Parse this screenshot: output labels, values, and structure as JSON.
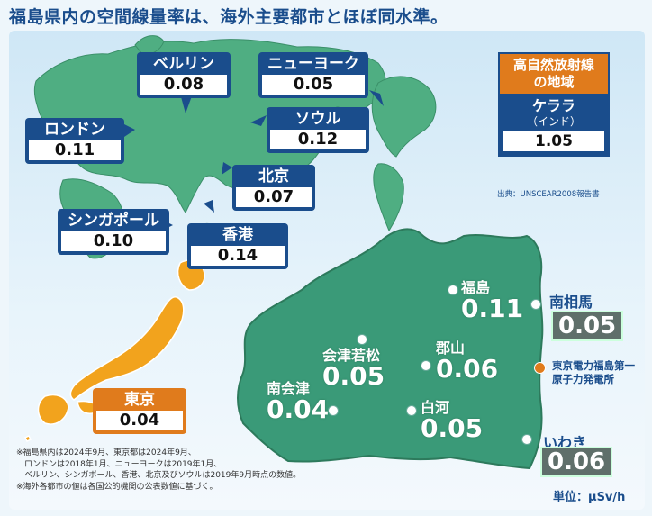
{
  "title": "福島県内の空間線量率は、海外主要都市とほぼ同水準。",
  "world_cities": [
    {
      "name": "ベルリン",
      "value": "0.08"
    },
    {
      "name": "ニューヨーク",
      "value": "0.05"
    },
    {
      "name": "ロンドン",
      "value": "0.11"
    },
    {
      "name": "ソウル",
      "value": "0.12"
    },
    {
      "name": "北京",
      "value": "0.07"
    },
    {
      "name": "シンガポール",
      "value": "0.10"
    },
    {
      "name": "香港",
      "value": "0.14"
    }
  ],
  "tokyo": {
    "name": "東京",
    "value": "0.04"
  },
  "high_radiation": {
    "heading_line1": "高自然放射線",
    "heading_line2": "の地域",
    "name": "ケララ",
    "country": "（インド）",
    "value": "1.05",
    "source": "出典：UNSCEAR2008報告書"
  },
  "fukushima_cities": [
    {
      "name": "福島",
      "value": "0.11"
    },
    {
      "name": "会津若松",
      "value": "0.05"
    },
    {
      "name": "郡山",
      "value": "0.06"
    },
    {
      "name": "南会津",
      "value": "0.04"
    },
    {
      "name": "白河",
      "value": "0.05"
    }
  ],
  "coastal_cities": [
    {
      "name": "南相馬",
      "value": "0.05"
    },
    {
      "name": "いわき",
      "value": "0.06"
    }
  ],
  "power_plant": {
    "line1": "東京電力福島第一",
    "line2": "原子力発電所"
  },
  "notes": [
    "※福島県内は2024年9月、東京都は2024年9月、",
    "　ロンドンは2018年1月、ニューヨークは2019年1月、",
    "　ベルリン、シンガポール、香港、北京及びソウルは2019年9月時点の数値。",
    "※海外各都市の値は各国公的機関の公表数値に基づく。"
  ],
  "unit": "単位：μSv/h",
  "colors": {
    "navy": "#1a4d8c",
    "orange": "#e07b1c",
    "fukushima_green": "#3a9a78",
    "world_green": "#4fae82"
  }
}
